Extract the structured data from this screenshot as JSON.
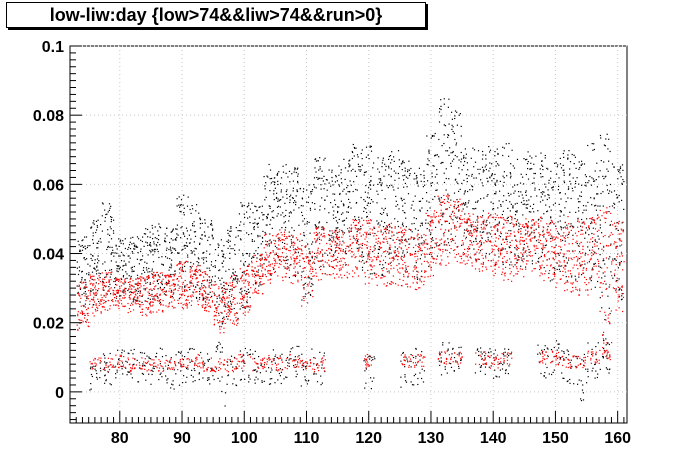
{
  "chart_data": {
    "type": "scatter",
    "title": "low-liw:day {low>74&&liw>74&&run>0}",
    "xlabel": "",
    "ylabel": "",
    "xlim": [
      72,
      161.5
    ],
    "ylim": [
      -0.009,
      0.1
    ],
    "x_ticks": [
      80,
      90,
      100,
      110,
      120,
      130,
      140,
      150,
      160
    ],
    "y_ticks": [
      0,
      0.02,
      0.04,
      0.06,
      0.08,
      0.1
    ],
    "y_tick_labels": [
      "0",
      "0.02",
      "0.04",
      "0.06",
      "0.08",
      "0.1"
    ],
    "grid": true,
    "series": [
      {
        "color": "#000000",
        "description": "dense point columns per day",
        "x": [
          74,
          76,
          78,
          80,
          82,
          84,
          86,
          88,
          90,
          92,
          94,
          96,
          98,
          100,
          102,
          104,
          106,
          108,
          110,
          112,
          114,
          116,
          118,
          120,
          122,
          124,
          126,
          128,
          130,
          132,
          134,
          136,
          138,
          140,
          142,
          144,
          146,
          148,
          150,
          152,
          154,
          156,
          158,
          160
        ],
        "y_low": [
          0.022,
          0.025,
          0.026,
          0.027,
          0.026,
          0.025,
          0.026,
          0.027,
          0.027,
          0.027,
          0.026,
          0.019,
          0.021,
          0.024,
          0.03,
          0.033,
          0.034,
          0.033,
          0.026,
          0.034,
          0.036,
          0.036,
          0.035,
          0.034,
          0.033,
          0.034,
          0.033,
          0.031,
          0.036,
          0.039,
          0.04,
          0.039,
          0.038,
          0.036,
          0.035,
          0.036,
          0.036,
          0.034,
          0.032,
          0.032,
          0.031,
          0.03,
          0.016,
          0.025
        ],
        "y_high": [
          0.045,
          0.05,
          0.055,
          0.045,
          0.045,
          0.048,
          0.05,
          0.048,
          0.058,
          0.055,
          0.05,
          0.045,
          0.05,
          0.055,
          0.055,
          0.066,
          0.067,
          0.065,
          0.06,
          0.068,
          0.065,
          0.068,
          0.072,
          0.072,
          0.068,
          0.07,
          0.068,
          0.065,
          0.075,
          0.085,
          0.082,
          0.072,
          0.07,
          0.072,
          0.072,
          0.068,
          0.07,
          0.07,
          0.068,
          0.07,
          0.068,
          0.072,
          0.075,
          0.068
        ]
      },
      {
        "color": "#ff0000",
        "description": "overlaid red point columns per day",
        "x": [
          74,
          76,
          78,
          80,
          82,
          84,
          86,
          88,
          90,
          92,
          94,
          96,
          98,
          100,
          102,
          104,
          106,
          108,
          110,
          112,
          114,
          116,
          118,
          120,
          122,
          124,
          126,
          128,
          130,
          132,
          134,
          136,
          138,
          140,
          142,
          144,
          146,
          148,
          150,
          152,
          154,
          156,
          158,
          160
        ],
        "y_low": [
          0.018,
          0.022,
          0.023,
          0.024,
          0.023,
          0.022,
          0.023,
          0.024,
          0.024,
          0.024,
          0.023,
          0.017,
          0.019,
          0.022,
          0.028,
          0.031,
          0.032,
          0.031,
          0.024,
          0.032,
          0.033,
          0.033,
          0.032,
          0.031,
          0.03,
          0.031,
          0.03,
          0.029,
          0.033,
          0.036,
          0.037,
          0.036,
          0.035,
          0.033,
          0.032,
          0.033,
          0.033,
          0.031,
          0.029,
          0.029,
          0.028,
          0.027,
          0.014,
          0.022
        ],
        "y_high": [
          0.032,
          0.034,
          0.035,
          0.033,
          0.033,
          0.034,
          0.035,
          0.034,
          0.038,
          0.037,
          0.035,
          0.032,
          0.034,
          0.037,
          0.04,
          0.046,
          0.047,
          0.046,
          0.043,
          0.048,
          0.047,
          0.048,
          0.05,
          0.05,
          0.048,
          0.049,
          0.048,
          0.046,
          0.053,
          0.057,
          0.056,
          0.052,
          0.051,
          0.052,
          0.052,
          0.05,
          0.051,
          0.051,
          0.05,
          0.051,
          0.05,
          0.052,
          0.054,
          0.05
        ]
      },
      {
        "color": "#000000",
        "description": "low cluster near zero",
        "x": [
          76,
          78,
          80,
          82,
          84,
          86,
          88,
          90,
          92,
          94,
          96,
          98,
          100,
          102,
          104,
          106,
          108,
          110,
          112,
          120,
          126,
          128,
          132,
          134,
          138,
          140,
          142,
          148,
          150,
          152,
          154,
          156,
          158
        ],
        "y_low": [
          0.0,
          0.002,
          0.004,
          0.003,
          0.002,
          0.003,
          0.001,
          0.002,
          0.003,
          0.002,
          -0.004,
          0.002,
          0.003,
          0.002,
          0.001,
          0.002,
          0.004,
          0.001,
          0.002,
          0.001,
          0.001,
          0.002,
          0.005,
          0.006,
          0.005,
          0.004,
          0.005,
          0.004,
          0.005,
          0.002,
          -0.003,
          0.004,
          0.005
        ],
        "y_high": [
          0.01,
          0.012,
          0.014,
          0.013,
          0.012,
          0.013,
          0.011,
          0.012,
          0.013,
          0.012,
          0.015,
          0.012,
          0.013,
          0.012,
          0.014,
          0.013,
          0.014,
          0.013,
          0.012,
          0.012,
          0.012,
          0.013,
          0.015,
          0.014,
          0.014,
          0.013,
          0.014,
          0.014,
          0.015,
          0.013,
          0.014,
          0.015,
          0.016
        ]
      },
      {
        "color": "#ff0000",
        "description": "red low cluster near zero",
        "x": [
          76,
          78,
          80,
          82,
          84,
          86,
          88,
          90,
          92,
          94,
          96,
          98,
          100,
          102,
          104,
          106,
          108,
          110,
          112,
          120,
          126,
          128,
          132,
          134,
          138,
          140,
          142,
          148,
          150,
          152,
          154,
          156,
          158
        ],
        "y_low": [
          0.006,
          0.006,
          0.007,
          0.006,
          0.006,
          0.006,
          0.006,
          0.006,
          0.007,
          0.006,
          0.006,
          0.006,
          0.007,
          0.006,
          0.007,
          0.006,
          0.007,
          0.006,
          0.006,
          0.007,
          0.007,
          0.007,
          0.008,
          0.008,
          0.008,
          0.007,
          0.008,
          0.008,
          0.008,
          0.007,
          0.007,
          0.008,
          0.009
        ],
        "y_high": [
          0.01,
          0.01,
          0.011,
          0.01,
          0.01,
          0.01,
          0.01,
          0.01,
          0.011,
          0.01,
          0.01,
          0.01,
          0.011,
          0.01,
          0.011,
          0.01,
          0.011,
          0.01,
          0.01,
          0.011,
          0.011,
          0.011,
          0.012,
          0.012,
          0.012,
          0.011,
          0.012,
          0.012,
          0.012,
          0.011,
          0.011,
          0.012,
          0.013
        ]
      }
    ]
  }
}
